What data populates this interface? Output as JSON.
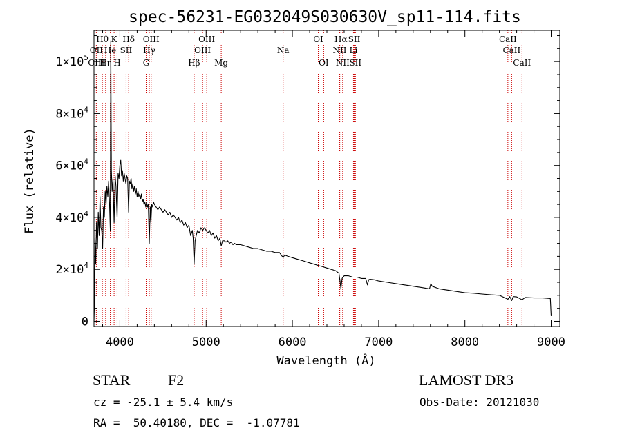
{
  "chart_data": {
    "type": "line",
    "title": "spec-56231-EG032049S030630V_sp11-114.fits",
    "xlabel": "Wavelength (Å)",
    "ylabel": "Flux (relative)",
    "xlim": [
      3700,
      9100
    ],
    "ylim": [
      -2000,
      112000
    ],
    "x_ticks": [
      4000,
      5000,
      6000,
      7000,
      8000,
      9000
    ],
    "y_ticks": [
      {
        "value": 0,
        "label": "0",
        "exp": ""
      },
      {
        "value": 20000,
        "label": "2×10",
        "exp": "4"
      },
      {
        "value": 40000,
        "label": "4×10",
        "exp": "4"
      },
      {
        "value": 60000,
        "label": "6×10",
        "exp": "4"
      },
      {
        "value": 80000,
        "label": "8×10",
        "exp": "4"
      },
      {
        "value": 100000,
        "label": "1×10",
        "exp": "5"
      }
    ],
    "series": [
      {
        "name": "flux",
        "points": [
          [
            3700,
            0
          ],
          [
            3705,
            6000
          ],
          [
            3712,
            32000
          ],
          [
            3720,
            22000
          ],
          [
            3730,
            38000
          ],
          [
            3740,
            28000
          ],
          [
            3750,
            42000
          ],
          [
            3760,
            33000
          ],
          [
            3770,
            48000
          ],
          [
            3780,
            36000
          ],
          [
            3790,
            35000
          ],
          [
            3800,
            28000
          ],
          [
            3810,
            44000
          ],
          [
            3820,
            40000
          ],
          [
            3830,
            50000
          ],
          [
            3840,
            45000
          ],
          [
            3850,
            52000
          ],
          [
            3860,
            48000
          ],
          [
            3870,
            54000
          ],
          [
            3880,
            45000
          ],
          [
            3889,
            35000
          ],
          [
            3895,
            108000
          ],
          [
            3902,
            58000
          ],
          [
            3910,
            50000
          ],
          [
            3920,
            55000
          ],
          [
            3933,
            38000
          ],
          [
            3945,
            56000
          ],
          [
            3955,
            52000
          ],
          [
            3968,
            40000
          ],
          [
            3980,
            57000
          ],
          [
            3990,
            55000
          ],
          [
            4000,
            60000
          ],
          [
            4010,
            62000
          ],
          [
            4020,
            56000
          ],
          [
            4030,
            58000
          ],
          [
            4040,
            54000
          ],
          [
            4050,
            57000
          ],
          [
            4060,
            55000
          ],
          [
            4070,
            53000
          ],
          [
            4080,
            56000
          ],
          [
            4090,
            55000
          ],
          [
            4101,
            42000
          ],
          [
            4110,
            54000
          ],
          [
            4120,
            53000
          ],
          [
            4130,
            55000
          ],
          [
            4140,
            51000
          ],
          [
            4150,
            53000
          ],
          [
            4160,
            50000
          ],
          [
            4170,
            52000
          ],
          [
            4180,
            49000
          ],
          [
            4190,
            51000
          ],
          [
            4200,
            48000
          ],
          [
            4210,
            50000
          ],
          [
            4220,
            48000
          ],
          [
            4230,
            49000
          ],
          [
            4240,
            47000
          ],
          [
            4250,
            49000
          ],
          [
            4260,
            46000
          ],
          [
            4270,
            47000
          ],
          [
            4280,
            45000
          ],
          [
            4290,
            46000
          ],
          [
            4300,
            44000
          ],
          [
            4310,
            46000
          ],
          [
            4320,
            44000
          ],
          [
            4330,
            45000
          ],
          [
            4341,
            30000
          ],
          [
            4352,
            44000
          ],
          [
            4360,
            38000
          ],
          [
            4370,
            45000
          ],
          [
            4380,
            44000
          ],
          [
            4390,
            46000
          ],
          [
            4400,
            45000
          ],
          [
            4420,
            44000
          ],
          [
            4440,
            43000
          ],
          [
            4460,
            44000
          ],
          [
            4480,
            43000
          ],
          [
            4500,
            42000
          ],
          [
            4520,
            43000
          ],
          [
            4540,
            42000
          ],
          [
            4560,
            41000
          ],
          [
            4580,
            42000
          ],
          [
            4600,
            40000
          ],
          [
            4620,
            41000
          ],
          [
            4640,
            40000
          ],
          [
            4660,
            39000
          ],
          [
            4680,
            40000
          ],
          [
            4700,
            38000
          ],
          [
            4720,
            39000
          ],
          [
            4740,
            37000
          ],
          [
            4760,
            38000
          ],
          [
            4780,
            36000
          ],
          [
            4800,
            37000
          ],
          [
            4820,
            33000
          ],
          [
            4840,
            35000
          ],
          [
            4850,
            32000
          ],
          [
            4861,
            22000
          ],
          [
            4872,
            31000
          ],
          [
            4885,
            33000
          ],
          [
            4900,
            35000
          ],
          [
            4920,
            34000
          ],
          [
            4940,
            36000
          ],
          [
            4960,
            35000
          ],
          [
            4980,
            36000
          ],
          [
            5000,
            35000
          ],
          [
            5020,
            34000
          ],
          [
            5040,
            35000
          ],
          [
            5060,
            33000
          ],
          [
            5080,
            34000
          ],
          [
            5100,
            32000
          ],
          [
            5120,
            33000
          ],
          [
            5140,
            31000
          ],
          [
            5160,
            32000
          ],
          [
            5175,
            29000
          ],
          [
            5190,
            31000
          ],
          [
            5210,
            31000
          ],
          [
            5230,
            30500
          ],
          [
            5250,
            31000
          ],
          [
            5270,
            30000
          ],
          [
            5290,
            30500
          ],
          [
            5310,
            29500
          ],
          [
            5330,
            30000
          ],
          [
            5350,
            29500
          ],
          [
            5400,
            29500
          ],
          [
            5450,
            29000
          ],
          [
            5500,
            28500
          ],
          [
            5550,
            28000
          ],
          [
            5600,
            28000
          ],
          [
            5650,
            27500
          ],
          [
            5700,
            27000
          ],
          [
            5750,
            27000
          ],
          [
            5800,
            26500
          ],
          [
            5850,
            26500
          ],
          [
            5893,
            24500
          ],
          [
            5910,
            25500
          ],
          [
            5950,
            25000
          ],
          [
            6000,
            24500
          ],
          [
            6050,
            24000
          ],
          [
            6100,
            23500
          ],
          [
            6150,
            23000
          ],
          [
            6200,
            22500
          ],
          [
            6250,
            22000
          ],
          [
            6300,
            21500
          ],
          [
            6350,
            21000
          ],
          [
            6400,
            20500
          ],
          [
            6450,
            20000
          ],
          [
            6500,
            19500
          ],
          [
            6540,
            18500
          ],
          [
            6550,
            16000
          ],
          [
            6563,
            12500
          ],
          [
            6576,
            16500
          ],
          [
            6600,
            17500
          ],
          [
            6650,
            17500
          ],
          [
            6700,
            17000
          ],
          [
            6750,
            17000
          ],
          [
            6800,
            16500
          ],
          [
            6850,
            16500
          ],
          [
            6870,
            14000
          ],
          [
            6885,
            16000
          ],
          [
            6900,
            16200
          ],
          [
            6950,
            16000
          ],
          [
            7000,
            15500
          ],
          [
            7100,
            15000
          ],
          [
            7200,
            14500
          ],
          [
            7300,
            14000
          ],
          [
            7400,
            13500
          ],
          [
            7500,
            13000
          ],
          [
            7590,
            12500
          ],
          [
            7605,
            14500
          ],
          [
            7620,
            13500
          ],
          [
            7700,
            12500
          ],
          [
            7800,
            12000
          ],
          [
            7900,
            11500
          ],
          [
            8000,
            11000
          ],
          [
            8100,
            10800
          ],
          [
            8200,
            10500
          ],
          [
            8300,
            10200
          ],
          [
            8400,
            10000
          ],
          [
            8498,
            8500
          ],
          [
            8520,
            9500
          ],
          [
            8542,
            8000
          ],
          [
            8560,
            9500
          ],
          [
            8600,
            9400
          ],
          [
            8662,
            8300
          ],
          [
            8700,
            9200
          ],
          [
            8800,
            9000
          ],
          [
            8900,
            9000
          ],
          [
            8990,
            8800
          ],
          [
            9000,
            2000
          ]
        ]
      }
    ],
    "annotations": [
      {
        "label": "Hθ",
        "x": 3797,
        "row": 1
      },
      {
        "label": "K",
        "x": 3933,
        "row": 1
      },
      {
        "label": "Hδ",
        "x": 4102,
        "row": 1
      },
      {
        "label": "OIII",
        "x": 4363,
        "row": 1
      },
      {
        "label": "OIII",
        "x": 5007,
        "row": 1
      },
      {
        "label": "OI",
        "x": 6300,
        "row": 1
      },
      {
        "label": "Hα",
        "x": 6563,
        "row": 1
      },
      {
        "label": "SII",
        "x": 6717,
        "row": 1
      },
      {
        "label": "CaII",
        "x": 8498,
        "row": 1
      },
      {
        "label": "OII",
        "x": 3727,
        "row": 2
      },
      {
        "label": "He",
        "x": 3889,
        "row": 2
      },
      {
        "label": "SII",
        "x": 4072,
        "row": 2
      },
      {
        "label": "Hγ",
        "x": 4341,
        "row": 2
      },
      {
        "label": "OIII",
        "x": 4959,
        "row": 2
      },
      {
        "label": "Na",
        "x": 5893,
        "row": 2
      },
      {
        "label": "NII",
        "x": 6548,
        "row": 2
      },
      {
        "label": "Li",
        "x": 6708,
        "row": 2
      },
      {
        "label": "CaII",
        "x": 8542,
        "row": 2
      },
      {
        "label": "OIII",
        "x": 3727,
        "row": 3
      },
      {
        "label": "Hη",
        "x": 3835,
        "row": 3
      },
      {
        "label": "H",
        "x": 3968,
        "row": 3
      },
      {
        "label": "G",
        "x": 4305,
        "row": 3
      },
      {
        "label": "Hβ",
        "x": 4861,
        "row": 3
      },
      {
        "label": "Mg",
        "x": 5175,
        "row": 3
      },
      {
        "label": "OI",
        "x": 6363,
        "row": 3
      },
      {
        "label": "NII",
        "x": 6583,
        "row": 3
      },
      {
        "label": "SII",
        "x": 6731,
        "row": 3
      },
      {
        "label": "CaII",
        "x": 8662,
        "row": 3
      }
    ],
    "line_color": "#000000",
    "marker_line_color": "#cc0000"
  },
  "info": {
    "object_class": "STAR",
    "subclass": "F2",
    "survey": "LAMOST DR3",
    "redshift": "cz = -25.1 ± 5.4 km/s",
    "obs_date": "Obs-Date: 20121030",
    "coords": "RA =  50.40180, DEC =  -1.07781"
  }
}
